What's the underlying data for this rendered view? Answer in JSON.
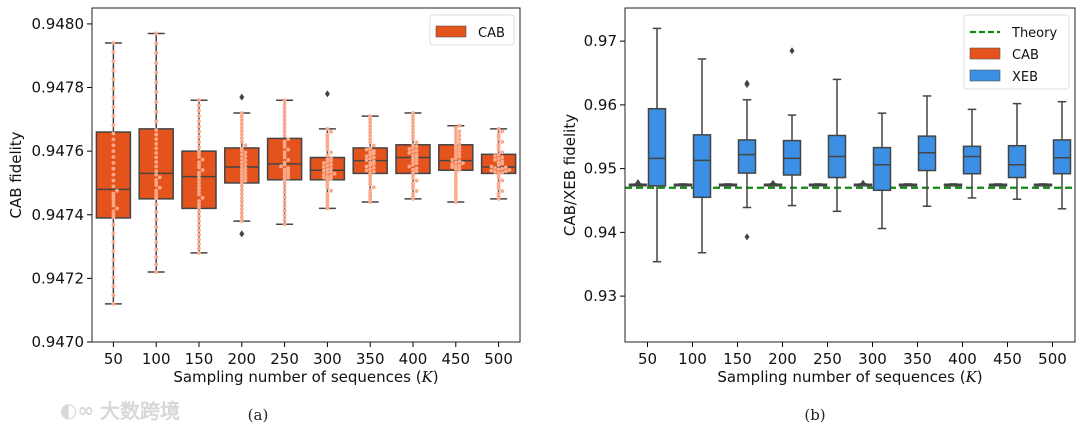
{
  "colors": {
    "cab": "#e4531c",
    "cab_points": "#fba98a",
    "xeb": "#3b8fe5",
    "theory": "#118a11",
    "line": "#444444"
  },
  "watermark": "大数跨境",
  "chart_data": [
    {
      "type": "box",
      "caption": "(a)",
      "xlabel": "Sampling number of sequences",
      "xlabel_var": "K",
      "ylabel": "CAB fidelity",
      "ylim": [
        0.947,
        0.94805
      ],
      "yticks": [
        0.947,
        0.9472,
        0.9474,
        0.9476,
        0.9478,
        0.948
      ],
      "ytick_labels": [
        "0.9470",
        "0.9472",
        "0.9474",
        "0.9476",
        "0.9478",
        "0.9480"
      ],
      "categories": [
        "50",
        "100",
        "150",
        "200",
        "250",
        "300",
        "350",
        "400",
        "450",
        "500"
      ],
      "legend": [
        {
          "name": "CAB",
          "position": "top-right"
        }
      ],
      "series": [
        {
          "name": "CAB",
          "swarm": true,
          "boxes": [
            {
              "low": 0.94712,
              "q1": 0.94739,
              "median": 0.94748,
              "q3": 0.94766,
              "high": 0.94794,
              "outliers": []
            },
            {
              "low": 0.94722,
              "q1": 0.94745,
              "median": 0.94753,
              "q3": 0.94767,
              "high": 0.94797,
              "outliers": []
            },
            {
              "low": 0.94728,
              "q1": 0.94742,
              "median": 0.94752,
              "q3": 0.9476,
              "high": 0.94776,
              "outliers": []
            },
            {
              "low": 0.94738,
              "q1": 0.9475,
              "median": 0.94755,
              "q3": 0.94761,
              "high": 0.94772,
              "outliers": [
                0.94777,
                0.94734
              ]
            },
            {
              "low": 0.94737,
              "q1": 0.94751,
              "median": 0.94756,
              "q3": 0.94764,
              "high": 0.94776,
              "outliers": []
            },
            {
              "low": 0.94742,
              "q1": 0.94751,
              "median": 0.94754,
              "q3": 0.94758,
              "high": 0.94767,
              "outliers": [
                0.94778
              ]
            },
            {
              "low": 0.94744,
              "q1": 0.94753,
              "median": 0.94757,
              "q3": 0.94761,
              "high": 0.94771,
              "outliers": []
            },
            {
              "low": 0.94745,
              "q1": 0.94753,
              "median": 0.94758,
              "q3": 0.94762,
              "high": 0.94772,
              "outliers": []
            },
            {
              "low": 0.94744,
              "q1": 0.94754,
              "median": 0.94757,
              "q3": 0.94762,
              "high": 0.94768,
              "outliers": []
            },
            {
              "low": 0.94745,
              "q1": 0.94753,
              "median": 0.94755,
              "q3": 0.94759,
              "high": 0.94767,
              "outliers": []
            }
          ]
        }
      ]
    },
    {
      "type": "box",
      "caption": "(b)",
      "xlabel": "Sampling number of sequences",
      "xlabel_var": "K",
      "ylabel": "CAB/XEB fidelity",
      "ylim": [
        0.9228,
        0.9752
      ],
      "yticks": [
        0.93,
        0.94,
        0.95,
        0.96,
        0.97
      ],
      "ytick_labels": [
        "0.93",
        "0.94",
        "0.95",
        "0.96",
        "0.97"
      ],
      "categories": [
        "50",
        "100",
        "150",
        "200",
        "250",
        "300",
        "350",
        "400",
        "450",
        "500"
      ],
      "legend": [
        {
          "name": "Theory",
          "position": "top-right"
        },
        {
          "name": "CAB"
        },
        {
          "name": "XEB"
        }
      ],
      "theory": 0.947,
      "series": [
        {
          "name": "CAB",
          "boxes": [
            {
              "low": 0.94745,
              "q1": 0.94748,
              "median": 0.9475,
              "q3": 0.94755,
              "high": 0.9476,
              "outliers": [
                0.9478
              ]
            },
            {
              "low": 0.94745,
              "q1": 0.94748,
              "median": 0.9475,
              "q3": 0.94755,
              "high": 0.9476,
              "outliers": []
            },
            {
              "low": 0.94745,
              "q1": 0.94748,
              "median": 0.9475,
              "q3": 0.94755,
              "high": 0.9476,
              "outliers": []
            },
            {
              "low": 0.94745,
              "q1": 0.94748,
              "median": 0.9475,
              "q3": 0.94755,
              "high": 0.9476,
              "outliers": [
                0.9477
              ]
            },
            {
              "low": 0.94745,
              "q1": 0.94748,
              "median": 0.9475,
              "q3": 0.94755,
              "high": 0.9476,
              "outliers": []
            },
            {
              "low": 0.94745,
              "q1": 0.94748,
              "median": 0.9475,
              "q3": 0.94755,
              "high": 0.9476,
              "outliers": [
                0.9477
              ]
            },
            {
              "low": 0.94745,
              "q1": 0.94748,
              "median": 0.9475,
              "q3": 0.94755,
              "high": 0.9476,
              "outliers": []
            },
            {
              "low": 0.94745,
              "q1": 0.94748,
              "median": 0.9475,
              "q3": 0.94755,
              "high": 0.9476,
              "outliers": []
            },
            {
              "low": 0.94745,
              "q1": 0.94748,
              "median": 0.9475,
              "q3": 0.94755,
              "high": 0.9476,
              "outliers": []
            },
            {
              "low": 0.94745,
              "q1": 0.94748,
              "median": 0.9475,
              "q3": 0.94755,
              "high": 0.9476,
              "outliers": []
            }
          ]
        },
        {
          "name": "XEB",
          "boxes": [
            {
              "low": 0.9354,
              "q1": 0.9473,
              "median": 0.9516,
              "q3": 0.9594,
              "high": 0.972,
              "outliers": []
            },
            {
              "low": 0.9368,
              "q1": 0.9455,
              "median": 0.9513,
              "q3": 0.9553,
              "high": 0.9672,
              "outliers": []
            },
            {
              "low": 0.9439,
              "q1": 0.9493,
              "median": 0.9522,
              "q3": 0.9545,
              "high": 0.9608,
              "outliers": [
                0.9632,
                0.9634,
                0.9393
              ]
            },
            {
              "low": 0.9442,
              "q1": 0.949,
              "median": 0.9516,
              "q3": 0.9544,
              "high": 0.9584,
              "outliers": [
                0.9685
              ]
            },
            {
              "low": 0.9433,
              "q1": 0.9486,
              "median": 0.9519,
              "q3": 0.9552,
              "high": 0.964,
              "outliers": []
            },
            {
              "low": 0.9406,
              "q1": 0.9466,
              "median": 0.9506,
              "q3": 0.9533,
              "high": 0.9587,
              "outliers": []
            },
            {
              "low": 0.9441,
              "q1": 0.9497,
              "median": 0.9525,
              "q3": 0.9551,
              "high": 0.9614,
              "outliers": []
            },
            {
              "low": 0.9454,
              "q1": 0.9492,
              "median": 0.9519,
              "q3": 0.9535,
              "high": 0.9593,
              "outliers": []
            },
            {
              "low": 0.9452,
              "q1": 0.9486,
              "median": 0.9506,
              "q3": 0.9536,
              "high": 0.9602,
              "outliers": []
            },
            {
              "low": 0.9437,
              "q1": 0.9492,
              "median": 0.9517,
              "q3": 0.9545,
              "high": 0.9605,
              "outliers": []
            }
          ]
        }
      ]
    }
  ]
}
